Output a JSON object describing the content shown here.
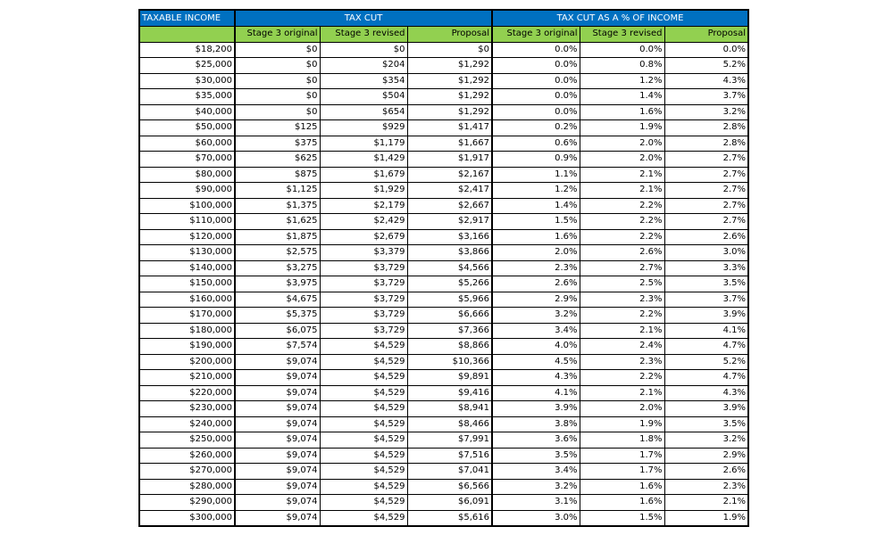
{
  "header": {
    "groups": [
      "TAXABLE INCOME",
      "TAX CUT",
      "TAX CUT AS A % OF INCOME"
    ],
    "columns": [
      "Stage 3 original",
      "Stage 3 revised",
      "Proposal",
      "Stage 3 original",
      "Stage 3 revised",
      "Proposal"
    ]
  },
  "table": {
    "rows": [
      [
        "$18,200",
        "$0",
        "$0",
        "$0",
        "0.0%",
        "0.0%",
        "0.0%"
      ],
      [
        "$25,000",
        "$0",
        "$204",
        "$1,292",
        "0.0%",
        "0.8%",
        "5.2%"
      ],
      [
        "$30,000",
        "$0",
        "$354",
        "$1,292",
        "0.0%",
        "1.2%",
        "4.3%"
      ],
      [
        "$35,000",
        "$0",
        "$504",
        "$1,292",
        "0.0%",
        "1.4%",
        "3.7%"
      ],
      [
        "$40,000",
        "$0",
        "$654",
        "$1,292",
        "0.0%",
        "1.6%",
        "3.2%"
      ],
      [
        "$50,000",
        "$125",
        "$929",
        "$1,417",
        "0.2%",
        "1.9%",
        "2.8%"
      ],
      [
        "$60,000",
        "$375",
        "$1,179",
        "$1,667",
        "0.6%",
        "2.0%",
        "2.8%"
      ],
      [
        "$70,000",
        "$625",
        "$1,429",
        "$1,917",
        "0.9%",
        "2.0%",
        "2.7%"
      ],
      [
        "$80,000",
        "$875",
        "$1,679",
        "$2,167",
        "1.1%",
        "2.1%",
        "2.7%"
      ],
      [
        "$90,000",
        "$1,125",
        "$1,929",
        "$2,417",
        "1.2%",
        "2.1%",
        "2.7%"
      ],
      [
        "$100,000",
        "$1,375",
        "$2,179",
        "$2,667",
        "1.4%",
        "2.2%",
        "2.7%"
      ],
      [
        "$110,000",
        "$1,625",
        "$2,429",
        "$2,917",
        "1.5%",
        "2.2%",
        "2.7%"
      ],
      [
        "$120,000",
        "$1,875",
        "$2,679",
        "$3,166",
        "1.6%",
        "2.2%",
        "2.6%"
      ],
      [
        "$130,000",
        "$2,575",
        "$3,379",
        "$3,866",
        "2.0%",
        "2.6%",
        "3.0%"
      ],
      [
        "$140,000",
        "$3,275",
        "$3,729",
        "$4,566",
        "2.3%",
        "2.7%",
        "3.3%"
      ],
      [
        "$150,000",
        "$3,975",
        "$3,729",
        "$5,266",
        "2.6%",
        "2.5%",
        "3.5%"
      ],
      [
        "$160,000",
        "$4,675",
        "$3,729",
        "$5,966",
        "2.9%",
        "2.3%",
        "3.7%"
      ],
      [
        "$170,000",
        "$5,375",
        "$3,729",
        "$6,666",
        "3.2%",
        "2.2%",
        "3.9%"
      ],
      [
        "$180,000",
        "$6,075",
        "$3,729",
        "$7,366",
        "3.4%",
        "2.1%",
        "4.1%"
      ],
      [
        "$190,000",
        "$7,574",
        "$4,529",
        "$8,866",
        "4.0%",
        "2.4%",
        "4.7%"
      ],
      [
        "$200,000",
        "$9,074",
        "$4,529",
        "$10,366",
        "4.5%",
        "2.3%",
        "5.2%"
      ],
      [
        "$210,000",
        "$9,074",
        "$4,529",
        "$9,891",
        "4.3%",
        "2.2%",
        "4.7%"
      ],
      [
        "$220,000",
        "$9,074",
        "$4,529",
        "$9,416",
        "4.1%",
        "2.1%",
        "4.3%"
      ],
      [
        "$230,000",
        "$9,074",
        "$4,529",
        "$8,941",
        "3.9%",
        "2.0%",
        "3.9%"
      ],
      [
        "$240,000",
        "$9,074",
        "$4,529",
        "$8,466",
        "3.8%",
        "1.9%",
        "3.5%"
      ],
      [
        "$250,000",
        "$9,074",
        "$4,529",
        "$7,991",
        "3.6%",
        "1.8%",
        "3.2%"
      ],
      [
        "$260,000",
        "$9,074",
        "$4,529",
        "$7,516",
        "3.5%",
        "1.7%",
        "2.9%"
      ],
      [
        "$270,000",
        "$9,074",
        "$4,529",
        "$7,041",
        "3.4%",
        "1.7%",
        "2.6%"
      ],
      [
        "$280,000",
        "$9,074",
        "$4,529",
        "$6,566",
        "3.2%",
        "1.6%",
        "2.3%"
      ],
      [
        "$290,000",
        "$9,074",
        "$4,529",
        "$6,091",
        "3.1%",
        "1.6%",
        "2.1%"
      ],
      [
        "$300,000",
        "$9,074",
        "$4,529",
        "$5,616",
        "3.0%",
        "1.5%",
        "1.9%"
      ]
    ]
  }
}
